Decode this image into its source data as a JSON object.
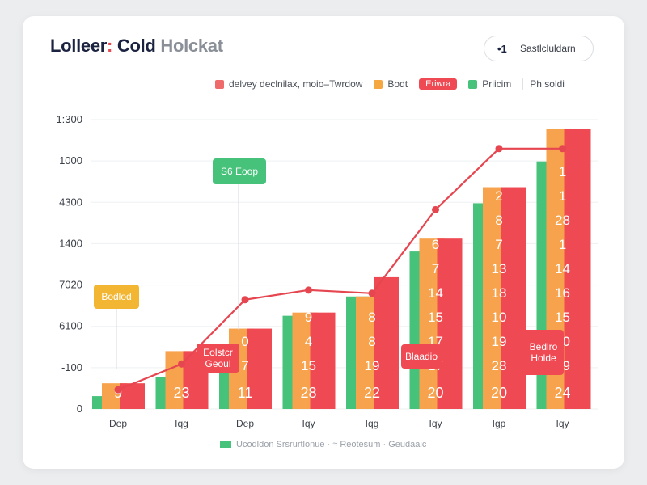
{
  "header": {
    "title_part1": "Lolleer",
    "title_part2": ":",
    "title_part3": " Cold",
    "title_part4": " Holckat"
  },
  "pill": {
    "icon": "•1",
    "label": "Sastlcluldarn"
  },
  "legend": [
    {
      "label": "delvey declnilax, moio–Twrdow",
      "color": "#ef6a6a",
      "style": "swatch"
    },
    {
      "label": "Bodt",
      "color": "#f5a742",
      "style": "swatch"
    },
    {
      "label": "Eriwra",
      "color": "#ef4a53",
      "style": "box"
    },
    {
      "label": "Priicim",
      "color": "#46c27a",
      "style": "swatch"
    },
    {
      "label": "Ph soldi",
      "color": "#e84a55",
      "style": "separator"
    }
  ],
  "colors": {
    "green": "#46c27a",
    "orange": "#f7a24c",
    "red": "#ef4a53",
    "line": "#e64650"
  },
  "callouts": [
    {
      "text": "Bodlod",
      "color": "yellow"
    },
    {
      "text": "S6 Eoop",
      "color": "green"
    },
    {
      "text": "Eolstcr\nGeoul",
      "color": "red"
    },
    {
      "text": "Blaadio",
      "color": "red"
    },
    {
      "text": "Bedlro\nHolde",
      "color": "red"
    }
  ],
  "footer": {
    "text": "Ucodldon Srsrurtlonue · ≈ Reotesum  ·  Geudaaic"
  },
  "chart_data": {
    "type": "bar",
    "y_ticks": [
      "0",
      "-100",
      "6100",
      "7020",
      "1400",
      "4300",
      "1000",
      "1:300"
    ],
    "categories": [
      "Dep",
      "Iqg",
      "Dep",
      "Iqy",
      "Iqg",
      "Iqy",
      "Igp",
      "Iqy"
    ],
    "series": [
      {
        "values": [
          0.4,
          1.0,
          1.8,
          2.9,
          3.5,
          4.9,
          6.4,
          7.7
        ]
      },
      {
        "values": [
          0.8,
          1.8,
          2.5,
          3.0,
          3.5,
          5.3,
          6.9,
          8.7
        ]
      },
      {
        "values": [
          0.8,
          1.8,
          2.5,
          3.0,
          4.1,
          5.3,
          6.9,
          8.7
        ]
      },
      {
        "values": [
          null,
          null,
          null,
          null,
          null,
          null,
          null,
          8.7
        ]
      }
    ],
    "line": [
      0.6,
      1.4,
      3.4,
      3.7,
      3.6,
      6.2,
      8.1,
      8.1
    ],
    "bar_labels": [
      [
        "9",
        "23",
        "11",
        "28",
        "22",
        "20",
        "20",
        "24"
      ],
      [],
      [],
      []
    ],
    "stack_labels": [
      {
        "bar": 2,
        "labels": [
          "7",
          "0"
        ]
      },
      {
        "bar": 3,
        "labels": [
          "15",
          "4",
          "9"
        ]
      },
      {
        "bar": 4,
        "labels": [
          "19",
          "8",
          "8"
        ]
      },
      {
        "bar": 5,
        "labels": [
          "17",
          "17",
          "15",
          "14",
          "7",
          "6"
        ]
      },
      {
        "bar": 6,
        "labels": [
          "28",
          "19",
          "10",
          "18",
          "13",
          "7",
          "8",
          "2"
        ]
      },
      {
        "bar": 7,
        "labels": [
          "19",
          "10",
          "15",
          "16",
          "14",
          "1",
          "28",
          "1",
          "1"
        ]
      }
    ],
    "ylim": [
      0,
      9
    ]
  }
}
